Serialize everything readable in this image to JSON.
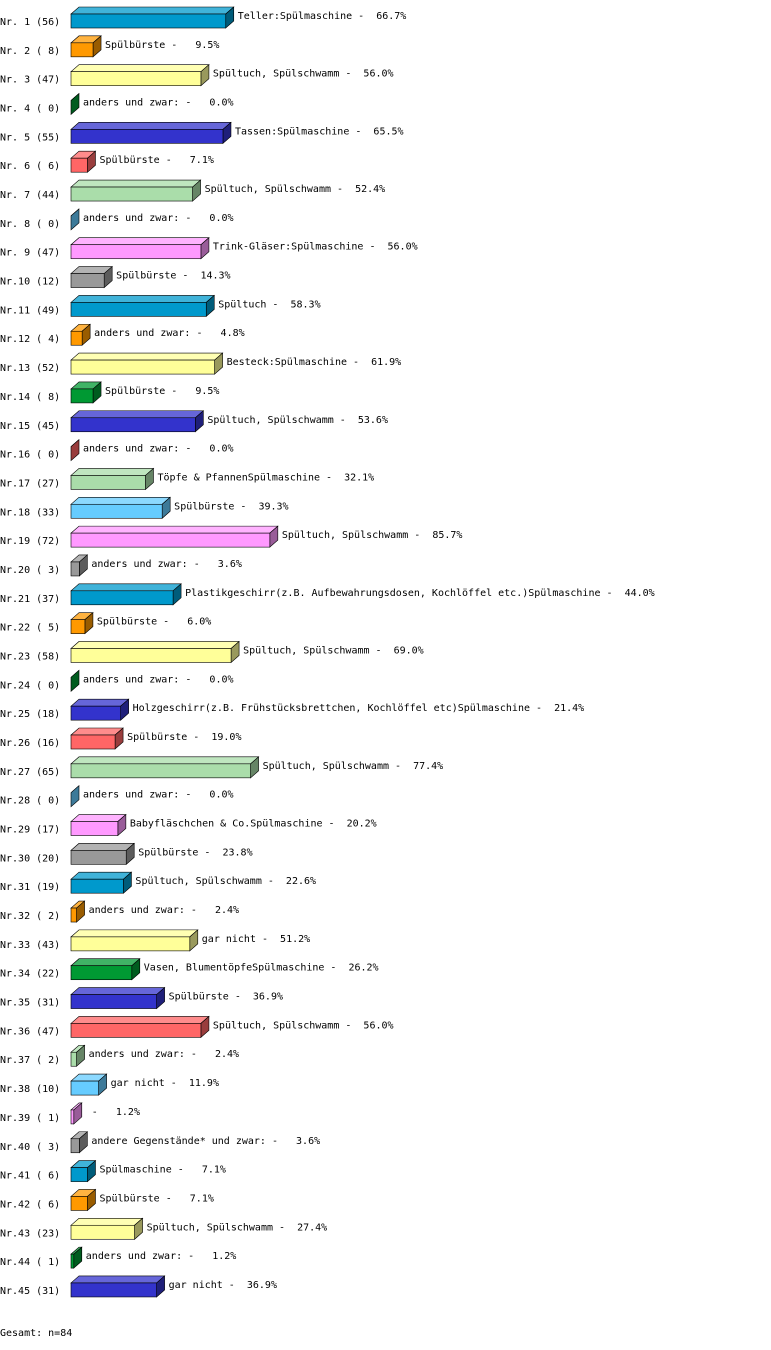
{
  "chart_data": {
    "type": "bar",
    "categories": [
      "Nr. 1 (56)",
      "Nr. 2 ( 8)",
      "Nr. 3 (47)",
      "Nr. 4 ( 0)",
      "Nr. 5 (55)",
      "Nr. 6 ( 6)",
      "Nr. 7 (44)",
      "Nr. 8 ( 0)",
      "Nr. 9 (47)",
      "Nr.10 (12)",
      "Nr.11 (49)",
      "Nr.12 ( 4)",
      "Nr.13 (52)",
      "Nr.14 ( 8)",
      "Nr.15 (45)",
      "Nr.16 ( 0)",
      "Nr.17 (27)",
      "Nr.18 (33)",
      "Nr.19 (72)",
      "Nr.20 ( 3)",
      "Nr.21 (37)",
      "Nr.22 ( 5)",
      "Nr.23 (58)",
      "Nr.24 ( 0)",
      "Nr.25 (18)",
      "Nr.26 (16)",
      "Nr.27 (65)",
      "Nr.28 ( 0)",
      "Nr.29 (17)",
      "Nr.30 (20)",
      "Nr.31 (19)",
      "Nr.32 ( 2)",
      "Nr.33 (43)",
      "Nr.34 (22)",
      "Nr.35 (31)",
      "Nr.36 (47)",
      "Nr.37 ( 2)",
      "Nr.38 (10)",
      "Nr.39 ( 1)",
      "Nr.40 ( 3)",
      "Nr.41 ( 6)",
      "Nr.42 ( 6)",
      "Nr.43 (23)",
      "Nr.44 ( 1)",
      "Nr.45 (31)"
    ],
    "values": [
      66.7,
      9.5,
      56.0,
      0.0,
      65.5,
      7.1,
      52.4,
      0.0,
      56.0,
      14.3,
      58.3,
      4.8,
      61.9,
      9.5,
      53.6,
      0.0,
      32.1,
      39.3,
      85.7,
      3.6,
      44.0,
      6.0,
      69.0,
      0.0,
      21.4,
      19.0,
      77.4,
      0.0,
      20.2,
      23.8,
      22.6,
      2.4,
      51.2,
      26.2,
      36.9,
      56.0,
      2.4,
      11.9,
      1.2,
      3.6,
      7.1,
      7.1,
      27.4,
      1.2,
      36.9
    ],
    "value_labels": [
      "Teller:Spülmaschine -  66.7%",
      "Spülbürste -   9.5%",
      "Spültuch, Spülschwamm -  56.0%",
      "anders und zwar: -   0.0%",
      "Tassen:Spülmaschine -  65.5%",
      "Spülbürste -   7.1%",
      "Spültuch, Spülschwamm -  52.4%",
      "anders und zwar: -   0.0%",
      "Trink-Gläser:Spülmaschine -  56.0%",
      "Spülbürste -  14.3%",
      "Spültuch -  58.3%",
      "anders und zwar: -   4.8%",
      "Besteck:Spülmaschine -  61.9%",
      "Spülbürste -   9.5%",
      "Spültuch, Spülschwamm -  53.6%",
      "anders und zwar: -   0.0%",
      "Töpfe & PfannenSpülmaschine -  32.1%",
      "Spülbürste -  39.3%",
      "Spültuch, Spülschwamm -  85.7%",
      "anders und zwar: -   3.6%",
      "Plastikgeschirr(z.B. Aufbewahrungsdosen, Kochlöffel etc.)Spülmaschine -  44.0%",
      "Spülbürste -   6.0%",
      "Spültuch, Spülschwamm -  69.0%",
      "anders und zwar: -   0.0%",
      "Holzgeschirr(z.B. Frühstücksbrettchen, Kochlöffel etc)Spülmaschine -  21.4%",
      "Spülbürste -  19.0%",
      "Spültuch, Spülschwamm -  77.4%",
      "anders und zwar: -   0.0%",
      "Babyfläschchen & Co.Spülmaschine -  20.2%",
      "Spülbürste -  23.8%",
      "Spültuch, Spülschwamm -  22.6%",
      "anders und zwar: -   2.4%",
      "gar nicht -  51.2%",
      "Vasen, BlumentöpfeSpülmaschine -  26.2%",
      "Spülbürste -  36.9%",
      "Spültuch, Spülschwamm -  56.0%",
      "anders und zwar: -   2.4%",
      "gar nicht -  11.9%",
      " -   1.2%",
      "andere Gegenstände* und zwar: -   3.6%",
      "Spülmaschine -   7.1%",
      "Spülbürste -   7.1%",
      "Spültuch, Spülschwamm -  27.4%",
      "anders und zwar: -   1.2%",
      "gar nicht -  36.9%"
    ],
    "colors": [
      "#0099cc",
      "#ff9900",
      "#ffff99",
      "#009933",
      "#3333cc",
      "#ff6666",
      "#aaddaa",
      "#66ccff",
      "#ff99ff",
      "#999999"
    ],
    "footer": "Gesamt: n=84"
  }
}
